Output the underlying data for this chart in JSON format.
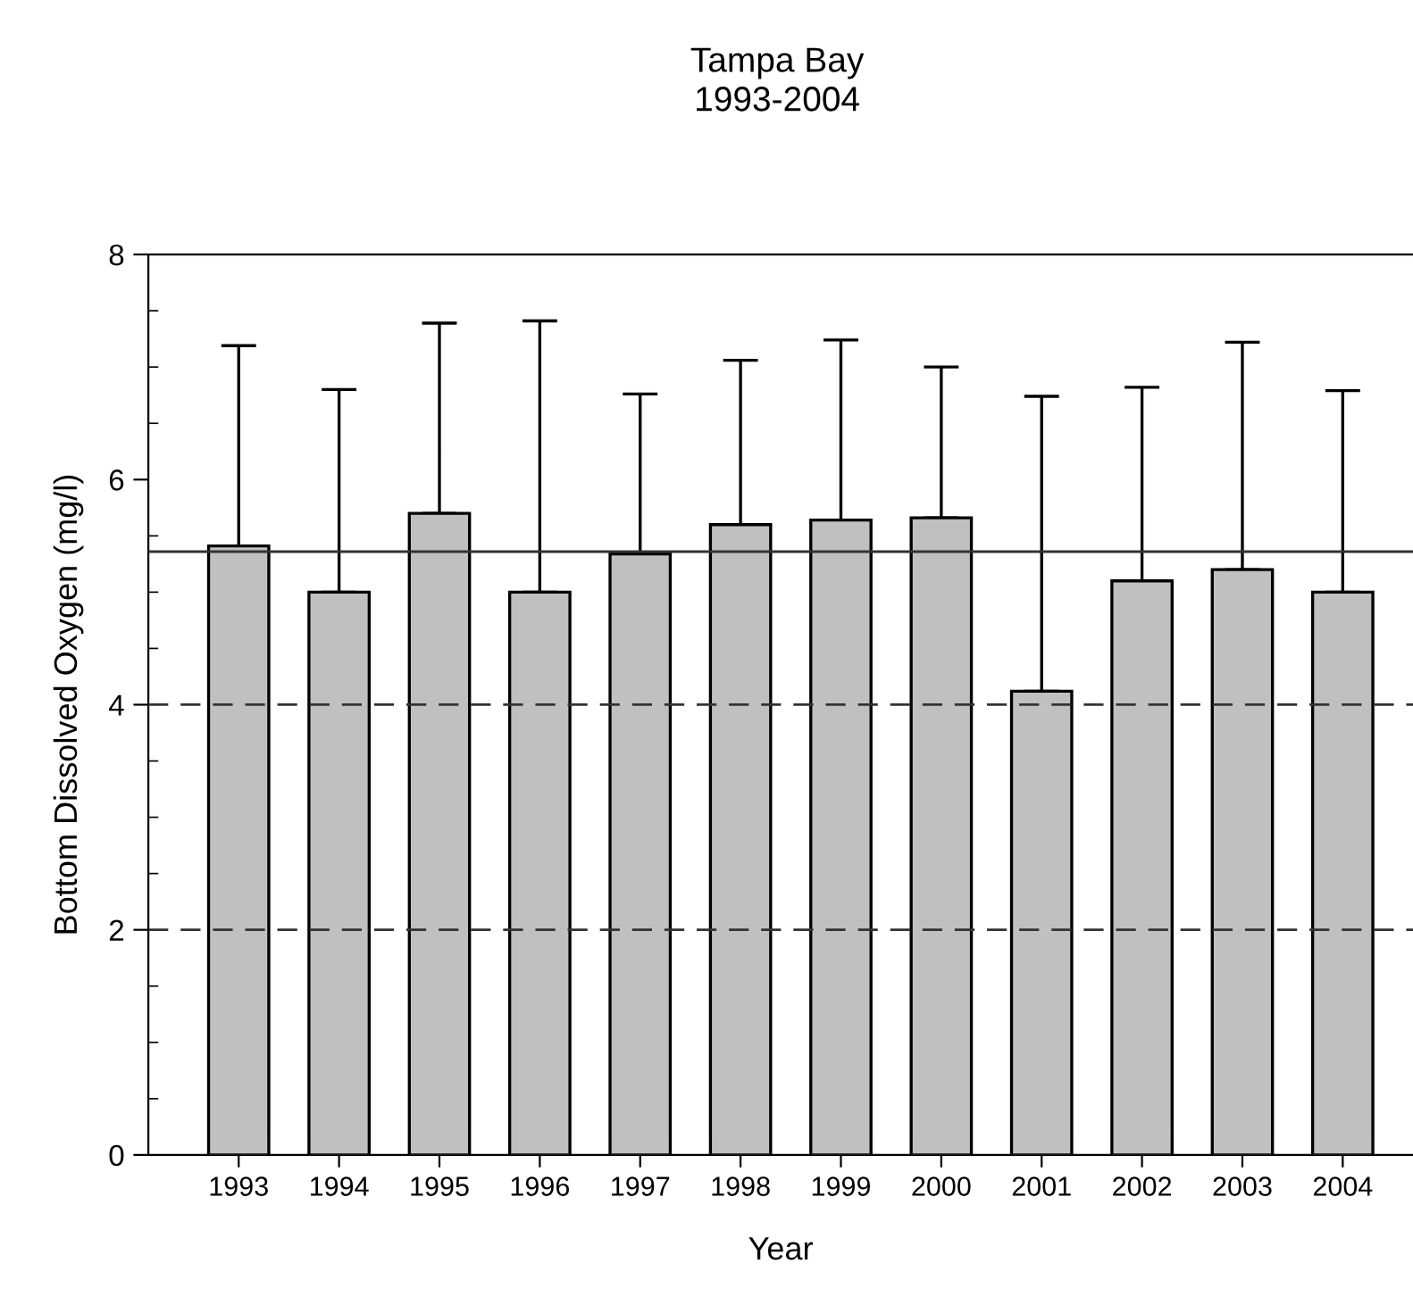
{
  "chart_data": {
    "type": "bar",
    "title": "Tampa Bay",
    "subtitle": "1993-2004",
    "xlabel": "Year",
    "ylabel": "Bottom Dissolved Oxygen (mg/l)",
    "categories": [
      "1993",
      "1994",
      "1995",
      "1996",
      "1997",
      "1998",
      "1999",
      "2000",
      "2001",
      "2002",
      "2003",
      "2004"
    ],
    "values": [
      5.41,
      5.0,
      5.7,
      5.0,
      5.34,
      5.6,
      5.64,
      5.66,
      4.12,
      5.1,
      5.2,
      5.0
    ],
    "errors": [
      [
        5.41,
        7.19
      ],
      [
        5.0,
        6.8
      ],
      [
        5.7,
        7.39
      ],
      [
        5.0,
        7.41
      ],
      [
        5.34,
        6.76
      ],
      [
        5.6,
        7.06
      ],
      [
        5.64,
        7.24
      ],
      [
        5.66,
        7.0
      ],
      [
        4.12,
        6.74
      ],
      [
        5.1,
        6.82
      ],
      [
        5.2,
        7.22
      ],
      [
        5.0,
        6.79
      ]
    ],
    "color": "#c0c0c0",
    "ylim": [
      0,
      8
    ],
    "yticks": [
      0,
      2,
      4,
      6,
      8
    ],
    "grid": false,
    "legend": false,
    "ref_lines": [
      {
        "axis": "y",
        "value": 5.36,
        "line_style": "solid"
      },
      {
        "axis": "y",
        "value": 4,
        "line_style": "dashed"
      },
      {
        "axis": "y",
        "value": 2,
        "line_style": "dashed"
      }
    ]
  }
}
